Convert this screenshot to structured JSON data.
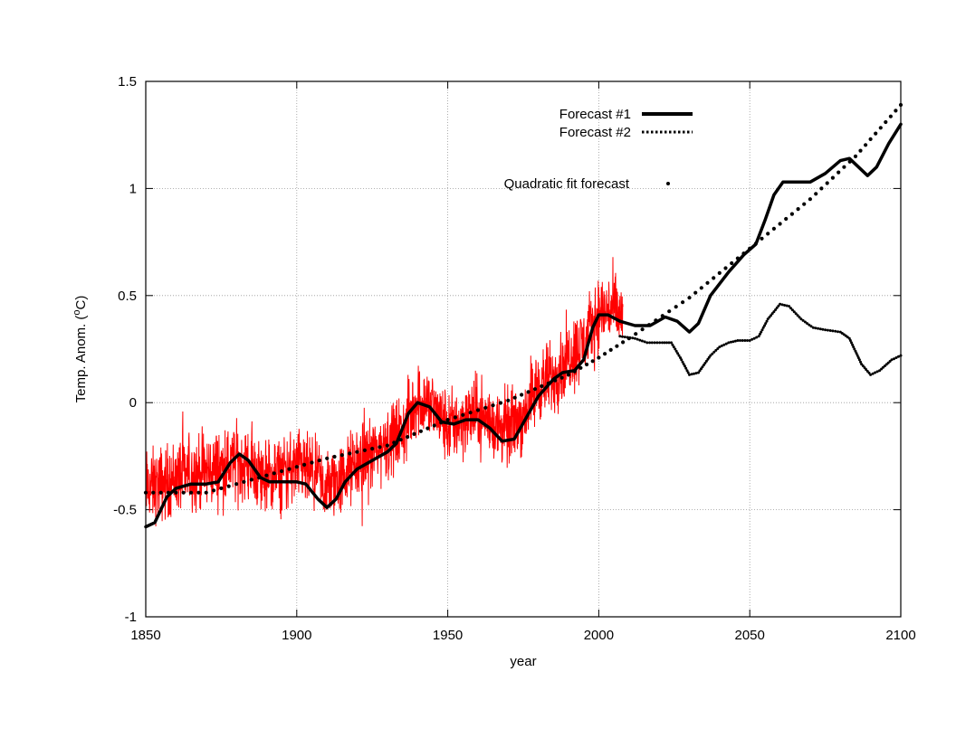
{
  "chart_data": {
    "type": "line",
    "title": "",
    "xlabel": "year",
    "ylabel": {
      "prefix": "Temp. Anom.  (",
      "sup": "o",
      "suffix": "C)"
    },
    "xlim": [
      1850,
      2100
    ],
    "ylim": [
      -1,
      1.5
    ],
    "x_ticks": [
      "1850",
      "1900",
      "1950",
      "2000",
      "2050",
      "2100"
    ],
    "y_ticks": [
      "-1",
      "-0.5",
      "0",
      "0.5",
      "1",
      "1.5"
    ],
    "grid": true,
    "legend_position": "top-right",
    "legend": [
      "Forecast #1",
      "Forecast #2",
      "Quadratic fit forecast"
    ],
    "colors": {
      "observed": "#ff0000",
      "forecast": "#000000"
    },
    "series": [
      {
        "style": "thin-red",
        "x_range": [
          1850,
          2008
        ],
        "anchors": [
          [
            1850,
            -0.4
          ],
          [
            1855,
            -0.38
          ],
          [
            1860,
            -0.35
          ],
          [
            1865,
            -0.33
          ],
          [
            1870,
            -0.32
          ],
          [
            1875,
            -0.3
          ],
          [
            1880,
            -0.28
          ],
          [
            1885,
            -0.3
          ],
          [
            1890,
            -0.36
          ],
          [
            1895,
            -0.33
          ],
          [
            1900,
            -0.3
          ],
          [
            1905,
            -0.34
          ],
          [
            1910,
            -0.4
          ],
          [
            1915,
            -0.35
          ],
          [
            1920,
            -0.28
          ],
          [
            1925,
            -0.24
          ],
          [
            1930,
            -0.18
          ],
          [
            1935,
            -0.14
          ],
          [
            1940,
            0.02
          ],
          [
            1945,
            -0.02
          ],
          [
            1950,
            -0.12
          ],
          [
            1955,
            -0.08
          ],
          [
            1960,
            -0.05
          ],
          [
            1965,
            -0.1
          ],
          [
            1970,
            -0.12
          ],
          [
            1975,
            -0.06
          ],
          [
            1980,
            0.08
          ],
          [
            1985,
            0.12
          ],
          [
            1990,
            0.22
          ],
          [
            1995,
            0.28
          ],
          [
            2000,
            0.42
          ],
          [
            2005,
            0.44
          ],
          [
            2008,
            0.38
          ]
        ]
      },
      {
        "name": "Forecast #1",
        "style": "thick-black",
        "points": [
          [
            1850,
            -0.58
          ],
          [
            1853,
            -0.56
          ],
          [
            1857,
            -0.44
          ],
          [
            1860,
            -0.4
          ],
          [
            1865,
            -0.38
          ],
          [
            1870,
            -0.38
          ],
          [
            1874,
            -0.37
          ],
          [
            1878,
            -0.28
          ],
          [
            1881,
            -0.24
          ],
          [
            1884,
            -0.27
          ],
          [
            1888,
            -0.35
          ],
          [
            1891,
            -0.37
          ],
          [
            1895,
            -0.37
          ],
          [
            1900,
            -0.37
          ],
          [
            1903,
            -0.38
          ],
          [
            1907,
            -0.45
          ],
          [
            1910,
            -0.49
          ],
          [
            1913,
            -0.45
          ],
          [
            1916,
            -0.37
          ],
          [
            1920,
            -0.31
          ],
          [
            1925,
            -0.27
          ],
          [
            1930,
            -0.23
          ],
          [
            1933,
            -0.19
          ],
          [
            1937,
            -0.05
          ],
          [
            1940,
            0.0
          ],
          [
            1944,
            -0.02
          ],
          [
            1948,
            -0.09
          ],
          [
            1952,
            -0.1
          ],
          [
            1956,
            -0.08
          ],
          [
            1960,
            -0.08
          ],
          [
            1964,
            -0.12
          ],
          [
            1968,
            -0.18
          ],
          [
            1972,
            -0.17
          ],
          [
            1976,
            -0.07
          ],
          [
            1980,
            0.03
          ],
          [
            1985,
            0.11
          ],
          [
            1988,
            0.14
          ],
          [
            1992,
            0.15
          ],
          [
            1995,
            0.2
          ],
          [
            1998,
            0.35
          ],
          [
            2000,
            0.41
          ],
          [
            2003,
            0.41
          ],
          [
            2007,
            0.38
          ],
          [
            2012,
            0.36
          ],
          [
            2017,
            0.36
          ],
          [
            2022,
            0.4
          ],
          [
            2026,
            0.38
          ],
          [
            2030,
            0.33
          ],
          [
            2033,
            0.37
          ],
          [
            2037,
            0.5
          ],
          [
            2043,
            0.61
          ],
          [
            2048,
            0.69
          ],
          [
            2052,
            0.74
          ],
          [
            2055,
            0.85
          ],
          [
            2058,
            0.97
          ],
          [
            2061,
            1.03
          ],
          [
            2066,
            1.03
          ],
          [
            2070,
            1.03
          ],
          [
            2075,
            1.07
          ],
          [
            2080,
            1.13
          ],
          [
            2083,
            1.14
          ],
          [
            2086,
            1.1
          ],
          [
            2089,
            1.06
          ],
          [
            2092,
            1.1
          ],
          [
            2096,
            1.21
          ],
          [
            2100,
            1.3
          ]
        ]
      },
      {
        "name": "Forecast #2",
        "style": "dotted-black",
        "points": [
          [
            2007,
            0.31
          ],
          [
            2012,
            0.3
          ],
          [
            2016,
            0.28
          ],
          [
            2021,
            0.28
          ],
          [
            2024,
            0.28
          ],
          [
            2027,
            0.21
          ],
          [
            2030,
            0.13
          ],
          [
            2033,
            0.14
          ],
          [
            2037,
            0.22
          ],
          [
            2040,
            0.26
          ],
          [
            2043,
            0.28
          ],
          [
            2046,
            0.29
          ],
          [
            2050,
            0.29
          ],
          [
            2053,
            0.31
          ],
          [
            2056,
            0.39
          ],
          [
            2060,
            0.46
          ],
          [
            2063,
            0.45
          ],
          [
            2067,
            0.39
          ],
          [
            2071,
            0.35
          ],
          [
            2075,
            0.34
          ],
          [
            2080,
            0.33
          ],
          [
            2083,
            0.3
          ],
          [
            2087,
            0.18
          ],
          [
            2090,
            0.13
          ],
          [
            2093,
            0.15
          ],
          [
            2097,
            0.2
          ],
          [
            2100,
            0.22
          ]
        ]
      },
      {
        "name": "Quadratic fit forecast",
        "style": "dots-black",
        "points": [
          [
            1850,
            -0.42
          ],
          [
            1870,
            -0.42
          ],
          [
            1890,
            -0.34
          ],
          [
            1910,
            -0.26
          ],
          [
            1930,
            -0.2
          ],
          [
            1950,
            -0.08
          ],
          [
            1970,
            0.01
          ],
          [
            1990,
            0.13
          ],
          [
            2000,
            0.21
          ],
          [
            2010,
            0.3
          ],
          [
            2030,
            0.49
          ],
          [
            2050,
            0.72
          ],
          [
            2070,
            0.95
          ],
          [
            2085,
            1.15
          ],
          [
            2100,
            1.39
          ]
        ]
      }
    ]
  }
}
